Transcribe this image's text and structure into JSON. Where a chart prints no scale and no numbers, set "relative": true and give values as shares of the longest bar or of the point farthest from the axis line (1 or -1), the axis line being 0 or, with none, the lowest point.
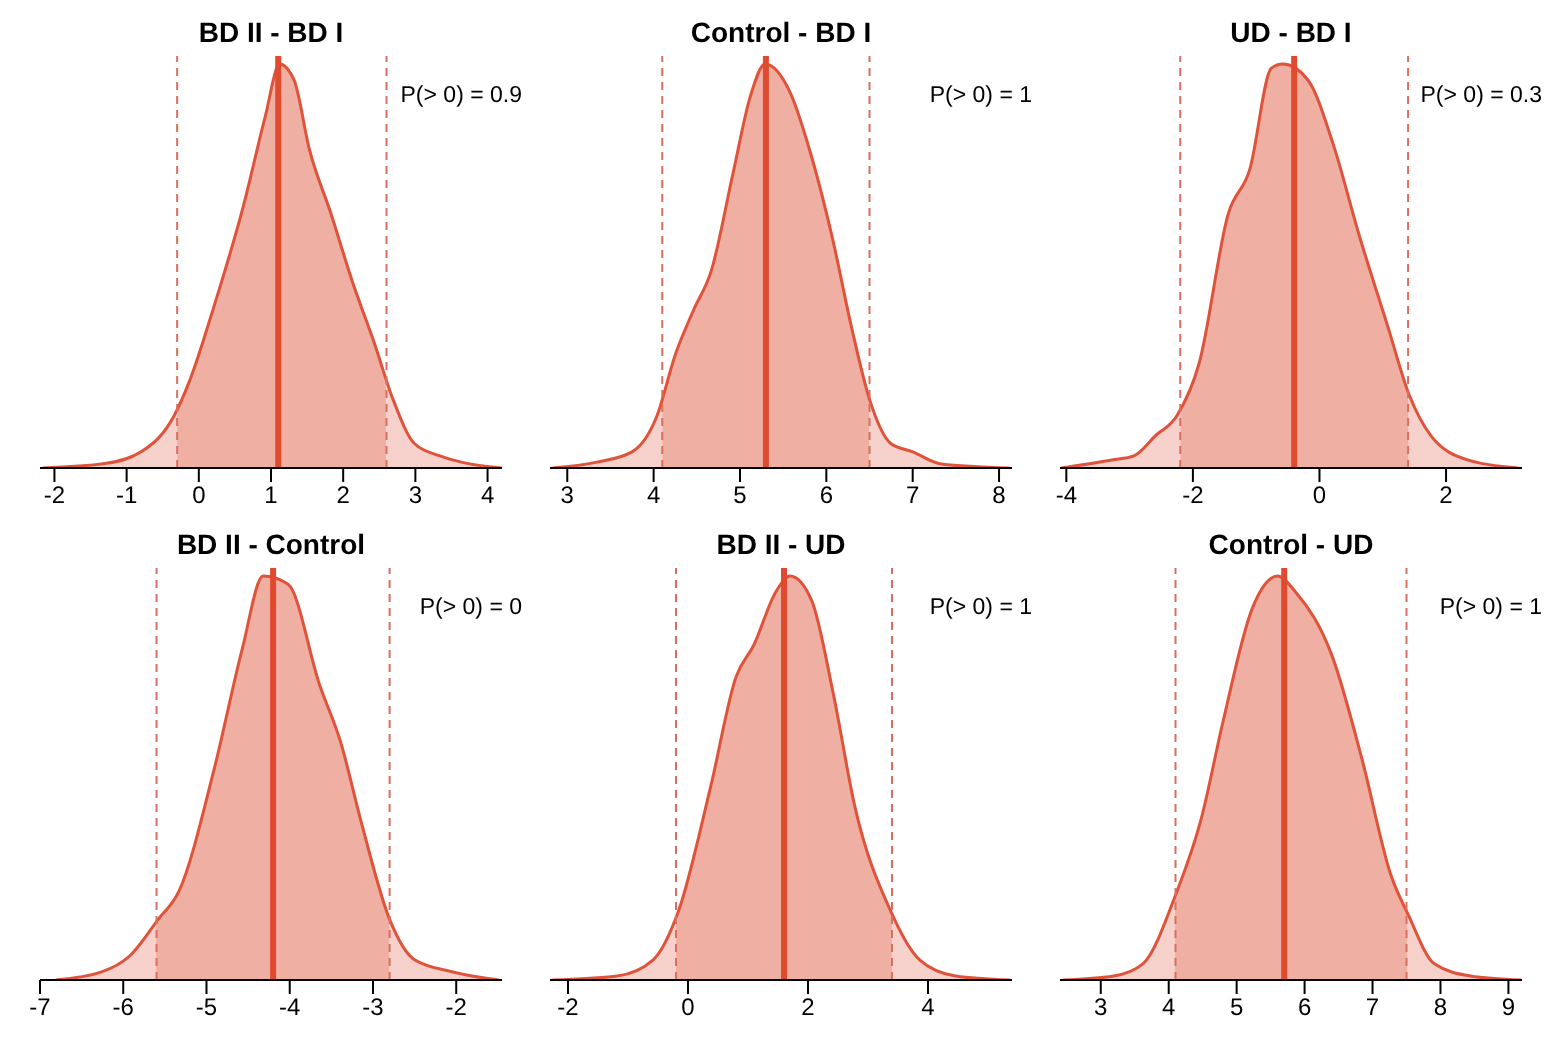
{
  "chart_data": [
    {
      "type": "area",
      "title": "BD II - BD I",
      "relative": true,
      "grid": false,
      "tick_labels": "x",
      "xlim": [
        -2.2,
        4.2
      ],
      "xticks": [
        -2,
        -1,
        0,
        1,
        2,
        3,
        4
      ],
      "series": [
        {
          "color": "#e0533b",
          "x": [
            -2.16,
            -1.3,
            -0.8,
            -0.34,
            -0.14,
            0.21,
            0.62,
            0.92,
            1.12,
            1.32,
            1.53,
            1.83,
            2.13,
            2.43,
            2.69,
            2.99,
            3.34,
            3.65,
            4.2
          ],
          "values": [
            0,
            0.011,
            0.04,
            0.13,
            0.21,
            0.4,
            0.65,
            0.87,
            1,
            0.96,
            0.79,
            0.63,
            0.46,
            0.31,
            0.17,
            0.06,
            0.03,
            0.014,
            0
          ]
        }
      ],
      "bands": [
        {
          "axis": "x",
          "from": -0.3,
          "to": 2.6,
          "color": "#f0afa3"
        }
      ],
      "ref_lines": [
        {
          "axis": "x",
          "value": 1.1,
          "color": "#e04a2f",
          "line_style": "solid"
        },
        {
          "axis": "x",
          "value": -0.3,
          "color": "#d9705e",
          "line_style": "dashed"
        },
        {
          "axis": "x",
          "value": 2.6,
          "color": "#d9705e",
          "line_style": "dashed"
        }
      ],
      "annotations": [
        "P(> 0) = 0.9"
      ]
    },
    {
      "type": "area",
      "title": "Control - BD I",
      "relative": true,
      "grid": false,
      "tick_labels": "x",
      "xlim": [
        2.8,
        8.15
      ],
      "xticks": [
        3,
        4,
        5,
        6,
        7,
        8
      ],
      "series": [
        {
          "color": "#e0533b",
          "x": [
            2.83,
            3.33,
            3.75,
            4.04,
            4.25,
            4.46,
            4.67,
            4.92,
            5.12,
            5.29,
            5.58,
            5.83,
            6.08,
            6.29,
            6.5,
            6.75,
            7.0,
            7.33,
            8.12
          ],
          "values": [
            0,
            0.014,
            0.04,
            0.13,
            0.28,
            0.39,
            0.49,
            0.73,
            0.92,
            1,
            0.93,
            0.77,
            0.56,
            0.35,
            0.17,
            0.06,
            0.04,
            0.01,
            0
          ]
        }
      ],
      "bands": [
        {
          "axis": "x",
          "from": 4.1,
          "to": 6.5,
          "color": "#f0afa3"
        }
      ],
      "ref_lines": [
        {
          "axis": "x",
          "value": 5.3,
          "color": "#e04a2f",
          "line_style": "solid"
        },
        {
          "axis": "x",
          "value": 4.1,
          "color": "#d9705e",
          "line_style": "dashed"
        },
        {
          "axis": "x",
          "value": 6.5,
          "color": "#d9705e",
          "line_style": "dashed"
        }
      ],
      "annotations": [
        "P(> 0) = 1"
      ]
    },
    {
      "type": "area",
      "title": "UD - BD I",
      "relative": true,
      "grid": false,
      "tick_labels": "x",
      "xlim": [
        -4.1,
        3.2
      ],
      "xticks": [
        -4,
        -2,
        0,
        2
      ],
      "series": [
        {
          "color": "#e0533b",
          "x": [
            -4.08,
            -3.28,
            -2.93,
            -2.59,
            -2.25,
            -1.9,
            -1.44,
            -1.1,
            -0.76,
            -0.58,
            -0.18,
            0.22,
            0.62,
            1.08,
            1.42,
            1.76,
            2.34,
            3.14
          ],
          "values": [
            0,
            0.02,
            0.03,
            0.08,
            0.13,
            0.26,
            0.63,
            0.74,
            0.99,
            1,
            0.96,
            0.8,
            0.58,
            0.35,
            0.18,
            0.08,
            0.02,
            0
          ]
        }
      ],
      "bands": [
        {
          "axis": "x",
          "from": -2.2,
          "to": 1.4,
          "color": "#f0afa3"
        }
      ],
      "ref_lines": [
        {
          "axis": "x",
          "value": -0.4,
          "color": "#e04a2f",
          "line_style": "solid"
        },
        {
          "axis": "x",
          "value": -2.2,
          "color": "#d9705e",
          "line_style": "dashed"
        },
        {
          "axis": "x",
          "value": 1.4,
          "color": "#d9705e",
          "line_style": "dashed"
        }
      ],
      "annotations": [
        "P(> 0) = 0.3"
      ]
    },
    {
      "type": "area",
      "title": "BD II - Control",
      "relative": true,
      "grid": false,
      "tick_labels": "x",
      "xlim": [
        -7,
        -1.45
      ],
      "xticks": [
        -7,
        -6,
        -5,
        -4,
        -3,
        -2
      ],
      "series": [
        {
          "color": "#e0533b",
          "x": [
            -6.81,
            -6.26,
            -5.92,
            -5.58,
            -5.33,
            -4.91,
            -4.57,
            -4.32,
            -4.02,
            -3.64,
            -3.39,
            -3.14,
            -2.8,
            -2.5,
            -2.04,
            -1.49
          ],
          "values": [
            0,
            0.02,
            0.06,
            0.15,
            0.22,
            0.52,
            0.82,
            1,
            0.98,
            0.73,
            0.59,
            0.39,
            0.15,
            0.05,
            0.02,
            0
          ]
        }
      ],
      "bands": [
        {
          "axis": "x",
          "from": -5.6,
          "to": -2.8,
          "color": "#f0afa3"
        }
      ],
      "ref_lines": [
        {
          "axis": "x",
          "value": -4.2,
          "color": "#e04a2f",
          "line_style": "solid"
        },
        {
          "axis": "x",
          "value": -5.6,
          "color": "#d9705e",
          "line_style": "dashed"
        },
        {
          "axis": "x",
          "value": -2.8,
          "color": "#d9705e",
          "line_style": "dashed"
        }
      ],
      "annotations": [
        "P(> 0) = 0"
      ]
    },
    {
      "type": "area",
      "title": "BD II - UD",
      "relative": true,
      "grid": false,
      "tick_labels": "x",
      "xlim": [
        -2.3,
        5.4
      ],
      "xticks": [
        -2,
        0,
        2,
        4
      ],
      "series": [
        {
          "color": "#e0533b",
          "x": [
            -2.26,
            -1.18,
            -0.58,
            -0.16,
            0.38,
            0.8,
            1.1,
            1.46,
            1.7,
            2.06,
            2.42,
            2.78,
            3.38,
            3.86,
            4.46,
            5.36
          ],
          "values": [
            0,
            0.01,
            0.05,
            0.17,
            0.48,
            0.75,
            0.83,
            0.96,
            1,
            0.94,
            0.71,
            0.43,
            0.17,
            0.05,
            0.01,
            0
          ]
        }
      ],
      "bands": [
        {
          "axis": "x",
          "from": -0.2,
          "to": 3.4,
          "color": "#f0afa3"
        }
      ],
      "ref_lines": [
        {
          "axis": "x",
          "value": 1.6,
          "color": "#e04a2f",
          "line_style": "solid"
        },
        {
          "axis": "x",
          "value": -0.2,
          "color": "#d9705e",
          "line_style": "dashed"
        },
        {
          "axis": "x",
          "value": 3.4,
          "color": "#d9705e",
          "line_style": "dashed"
        }
      ],
      "annotations": [
        "P(> 0) = 1"
      ]
    },
    {
      "type": "area",
      "title": "Control - UD",
      "relative": true,
      "grid": false,
      "tick_labels": "x",
      "xlim": [
        2.4,
        9.2
      ],
      "xticks": [
        3,
        4,
        5,
        6,
        7,
        8,
        9
      ],
      "series": [
        {
          "color": "#e0533b",
          "x": [
            2.44,
            3.19,
            3.62,
            4.1,
            4.48,
            4.8,
            5.23,
            5.6,
            5.87,
            6.41,
            6.84,
            7.27,
            7.53,
            7.91,
            8.44,
            9.19
          ],
          "values": [
            0,
            0.01,
            0.04,
            0.21,
            0.4,
            0.64,
            0.92,
            1,
            0.96,
            0.8,
            0.55,
            0.26,
            0.16,
            0.04,
            0.01,
            0
          ]
        }
      ],
      "bands": [
        {
          "axis": "x",
          "from": 4.1,
          "to": 7.5,
          "color": "#f0afa3"
        }
      ],
      "ref_lines": [
        {
          "axis": "x",
          "value": 5.7,
          "color": "#e04a2f",
          "line_style": "solid"
        },
        {
          "axis": "x",
          "value": 4.1,
          "color": "#d9705e",
          "line_style": "dashed"
        },
        {
          "axis": "x",
          "value": 7.5,
          "color": "#d9705e",
          "line_style": "dashed"
        }
      ],
      "annotations": [
        "P(> 0) = 1"
      ]
    }
  ]
}
